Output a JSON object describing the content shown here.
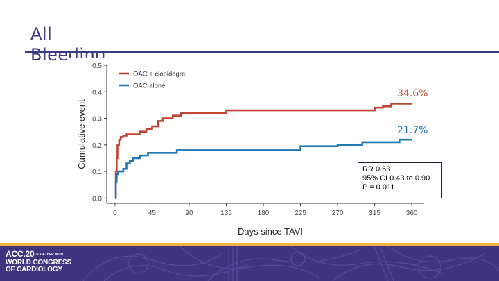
{
  "slide": {
    "title_line1": "All",
    "title_line2": "Bleeding"
  },
  "colors": {
    "title": "#3b3a85",
    "series_clopidogrel": "#c0442f",
    "series_alone": "#1f77b4",
    "footer_band": "#3d357f",
    "footer_stripe": "#f2b544"
  },
  "chart_data": {
    "type": "line",
    "step": true,
    "title": "",
    "xlabel": "Days since TAVI",
    "ylabel": "Cumulative event",
    "xlim": [
      -10,
      375
    ],
    "ylim": [
      -0.02,
      0.5
    ],
    "x_ticks": [
      0,
      45,
      90,
      135,
      180,
      225,
      270,
      315,
      360
    ],
    "y_ticks": [
      0.0,
      0.1,
      0.2,
      0.3,
      0.4,
      0.5
    ],
    "y_tick_labels": [
      "0.0",
      "0.1",
      "0.2",
      "0.3",
      "0.4",
      "0.5"
    ],
    "grid": false,
    "legend_position": "top-left",
    "series": [
      {
        "name": "OAC + clopidogrel",
        "color": "#c0442f",
        "x": [
          0,
          1,
          2,
          3,
          5,
          7,
          10,
          14,
          30,
          38,
          45,
          52,
          58,
          70,
          80,
          135,
          225,
          315,
          325,
          335,
          360
        ],
        "y": [
          0.0,
          0.1,
          0.15,
          0.2,
          0.22,
          0.23,
          0.235,
          0.24,
          0.25,
          0.26,
          0.27,
          0.29,
          0.3,
          0.31,
          0.32,
          0.33,
          0.33,
          0.34,
          0.345,
          0.355,
          0.355
        ]
      },
      {
        "name": "OAC alone",
        "color": "#1f77b4",
        "x": [
          0,
          1,
          2,
          4,
          10,
          14,
          18,
          22,
          30,
          40,
          75,
          225,
          270,
          300,
          345,
          360
        ],
        "y": [
          0.0,
          0.06,
          0.09,
          0.1,
          0.11,
          0.13,
          0.14,
          0.15,
          0.16,
          0.17,
          0.18,
          0.195,
          0.2,
          0.21,
          0.22,
          0.22
        ]
      }
    ],
    "annotations": [
      {
        "text": "34.6%",
        "color": "#c0442f"
      },
      {
        "text": "21.7%",
        "color": "#1f77b4"
      }
    ],
    "stats": {
      "rr": "RR 0.63",
      "ci": "95% CI 0.43 to 0.90",
      "p": "P = 0.011"
    }
  },
  "footer": {
    "logo_line1": "ACC.20",
    "logo_together": "TOGETHER WITH",
    "logo_line2": "WORLD CONGRESS",
    "logo_line3": "OF CARDIOLOGY"
  }
}
